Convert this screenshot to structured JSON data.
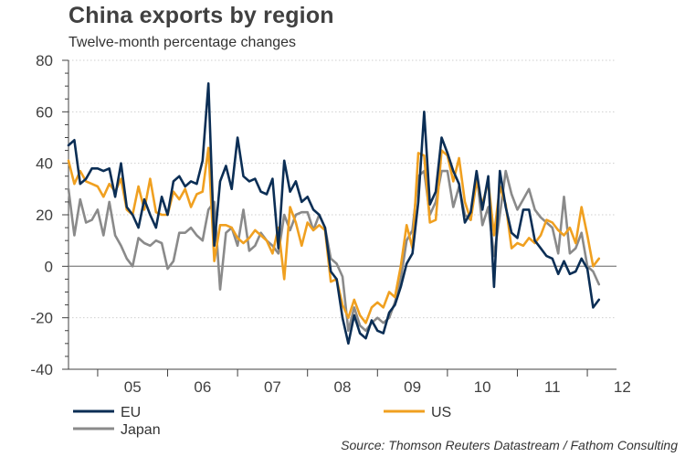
{
  "chart_data": {
    "type": "line",
    "title": "China exports by region",
    "subtitle": "Twelve-month percentage changes",
    "source": "Source: Thomson Reuters Datastream / Fathom Consulting",
    "xlabel": "",
    "ylabel": "",
    "ylim": [
      -40,
      80
    ],
    "yticks": [
      -40,
      -20,
      0,
      20,
      40,
      60,
      80
    ],
    "xlim": [
      2004.583,
      2012.417
    ],
    "xticks": [
      "05",
      "06",
      "07",
      "08",
      "09",
      "10",
      "11",
      "12"
    ],
    "x_start": "2004-08",
    "x_step": "month",
    "grid": true,
    "legend": [
      {
        "name": "EU",
        "color": "#0b2e55"
      },
      {
        "name": "US",
        "color": "#f0a020"
      },
      {
        "name": "Japan",
        "color": "#8a8a8a"
      }
    ],
    "series": [
      {
        "name": "EU",
        "color": "#0b2e55",
        "values": [
          47,
          49,
          32,
          34,
          38,
          38,
          37,
          38,
          27,
          40,
          23,
          20,
          15,
          26,
          20,
          15,
          27,
          20,
          33,
          35,
          31,
          33,
          32,
          41,
          71,
          8,
          33,
          39,
          30,
          50,
          35,
          33,
          34,
          29,
          28,
          34,
          7,
          41,
          29,
          33,
          25,
          27,
          22,
          20,
          15,
          -2,
          -5,
          -20,
          -30,
          -19,
          -26,
          -28,
          -21,
          -25,
          -26,
          -18,
          -15,
          -8,
          1,
          5,
          25,
          60,
          24,
          29,
          50,
          44,
          37,
          32,
          17,
          21,
          37,
          22,
          35,
          -8,
          37,
          23,
          13,
          11,
          22,
          22,
          10,
          7,
          4,
          3,
          -3,
          2,
          -3,
          -2,
          3,
          -1,
          -16,
          -13
        ]
      },
      {
        "name": "US",
        "color": "#f0a020",
        "values": [
          41,
          32,
          37,
          33,
          32,
          31,
          27,
          32,
          29,
          34,
          22,
          20,
          31,
          22,
          34,
          21,
          20,
          20,
          29,
          26,
          30,
          23,
          28,
          29,
          46,
          2,
          16,
          16,
          15,
          11,
          9,
          11,
          14,
          12,
          10,
          5,
          15,
          -5,
          23,
          17,
          8,
          17,
          14,
          16,
          14,
          -6,
          -5,
          -15,
          -20,
          -13,
          -19,
          -22,
          -16,
          -14,
          -16,
          -10,
          -12,
          0,
          16,
          7,
          44,
          43,
          17,
          18,
          45,
          43,
          33,
          42,
          25,
          18,
          33,
          24,
          33,
          12,
          31,
          24,
          7,
          9,
          8,
          11,
          9,
          12,
          18,
          17,
          14,
          12,
          15,
          9,
          23,
          12,
          0,
          3
        ]
      },
      {
        "name": "Japan",
        "color": "#8a8a8a",
        "values": [
          30,
          12,
          26,
          17,
          18,
          22,
          12,
          25,
          12,
          8,
          3,
          0,
          11,
          9,
          8,
          10,
          9,
          -1,
          2,
          13,
          13,
          15,
          12,
          10,
          22,
          25,
          -9,
          13,
          15,
          8,
          22,
          6,
          8,
          13,
          10,
          8,
          5,
          20,
          14,
          20,
          21,
          21,
          14,
          20,
          15,
          3,
          1,
          -4,
          -25,
          -16,
          -23,
          -25,
          -22,
          -20,
          -22,
          -20,
          -14,
          -5,
          10,
          14,
          35,
          37,
          20,
          25,
          37,
          37,
          23,
          31,
          20,
          18,
          36,
          16,
          23,
          4,
          20,
          37,
          28,
          22,
          26,
          30,
          22,
          19,
          17,
          15,
          5,
          27,
          5,
          7,
          13,
          0,
          -2,
          -7
        ]
      }
    ]
  }
}
